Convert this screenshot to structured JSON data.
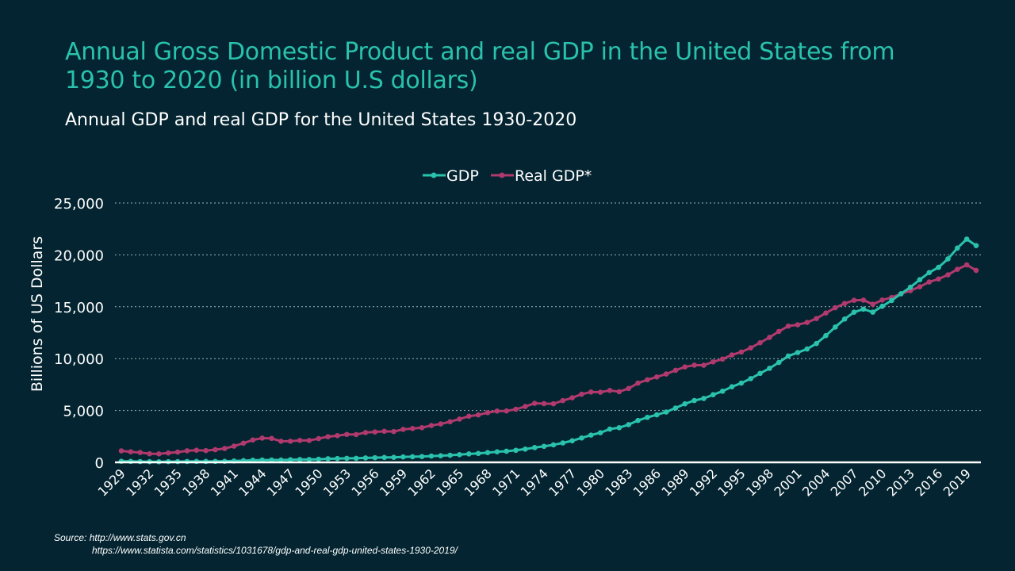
{
  "title": "Annual Gross Domestic Product and real GDP in the United States from 1930 to 2020 (in billion U.S dollars)",
  "subtitle": "Annual GDP and real GDP for the United States 1930-2020",
  "source": {
    "line1": "Source: http://www.stats.gov.cn",
    "line2": "https://www.statista.com/statistics/1031678/gdp-and-real-gdp-united-states-1930-2019/"
  },
  "colors": {
    "background": "#032430",
    "gdp": "#2ac2ad",
    "real_gdp": "#b03a6e",
    "title": "#2ac2ad"
  },
  "chart_data": {
    "type": "line",
    "title": "Annual GDP and real GDP for the United States 1930-2020",
    "xlabel": "",
    "ylabel": "Billions of US Dollars",
    "ylim": [
      0,
      25000
    ],
    "yticks": [
      0,
      5000,
      10000,
      15000,
      20000,
      25000
    ],
    "ytick_labels": [
      "0",
      "5,000",
      "10,000",
      "15,000",
      "20,000",
      "25,000"
    ],
    "xlim": [
      1929,
      2020
    ],
    "xtick_labels": [
      "1929",
      "1932",
      "1935",
      "1938",
      "1941",
      "1944",
      "1947",
      "1950",
      "1953",
      "1956",
      "1959",
      "1962",
      "1965",
      "1968",
      "1971",
      "1974",
      "1977",
      "1980",
      "1983",
      "1986",
      "1989",
      "1992",
      "1995",
      "1998",
      "2001",
      "2004",
      "2007",
      "2010",
      "2013",
      "2016",
      "2019"
    ],
    "grid": "horizontal-dotted",
    "legend_position": "top-center",
    "x_start": 1929,
    "series": [
      {
        "name": "GDP",
        "color": "#2ac2ad",
        "values": [
          104.6,
          92.2,
          77.4,
          59.5,
          57.2,
          66.8,
          74.3,
          84.9,
          93.0,
          87.4,
          93.4,
          102.9,
          129.3,
          166.0,
          203.1,
          224.4,
          228.0,
          227.5,
          249.6,
          274.5,
          272.5,
          299.8,
          346.9,
          367.3,
          389.2,
          390.5,
          425.5,
          449.4,
          474.0,
          481.2,
          521.7,
          542.4,
          562.2,
          603.9,
          637.5,
          684.5,
          742.3,
          813.4,
          860.0,
          940.7,
          1017.6,
          1073.3,
          1164.9,
          1279.1,
          1425.4,
          1545.2,
          1684.9,
          1873.4,
          2081.8,
          2351.6,
          2627.3,
          2857.3,
          3207.0,
          3343.8,
          3634.0,
          4037.6,
          4339.0,
          4579.6,
          4855.2,
          5236.4,
          5641.6,
          5963.1,
          6158.1,
          6520.3,
          6858.6,
          7287.2,
          7639.7,
          8073.1,
          8577.6,
          9062.8,
          9631.2,
          10251.0,
          10581.9,
          10929.1,
          11456.5,
          12217.2,
          13039.2,
          13815.6,
          14474.2,
          14769.9,
          14478.1,
          15049.0,
          15599.7,
          16254.0,
          16880.7,
          17608.1,
          18295.0,
          18804.9,
          19612.1,
          20656.5,
          21521.4,
          20893.7
        ]
      },
      {
        "name": "Real GDP*",
        "color": "#b03a6e",
        "values": [
          1109.4,
          1015.1,
          950.0,
          827.7,
          817.3,
          906.0,
          986.3,
          1113.6,
          1170.6,
          1132.4,
          1223.1,
          1331.0,
          1566.3,
          1848.4,
          2160.5,
          2335.0,
          2309.6,
          2032.7,
          2035.0,
          2116.5,
          2107.9,
          2290.6,
          2474.0,
          2574.5,
          2694.9,
          2681.4,
          2874.4,
          2932.7,
          2995.3,
          2969.4,
          3180.0,
          3262.1,
          3345.7,
          3550.7,
          3705.3,
          3918.8,
          4173.4,
          4448.7,
          4570.7,
          4795.8,
          4945.4,
          4954.5,
          5117.6,
          5386.7,
          5690.9,
          5660.0,
          5648.5,
          5952.8,
          6228.1,
          6572.8,
          6780.9,
          6763.5,
          6935.2,
          6810.1,
          7122.3,
          7637.7,
          7956.2,
          8231.7,
          8516.4,
          8872.3,
          9197.8,
          9371.5,
          9361.3,
          9691.1,
          9957.7,
          10358.9,
          10637.0,
          11038.3,
          11529.2,
          12045.8,
          12623.4,
          13138.0,
          13263.4,
          13488.4,
          13865.5,
          14399.7,
          14901.3,
          15315.9,
          15623.9,
          15643.0,
          15236.3,
          15649.0,
          15891.5,
          16254.0,
          16553.3,
          16932.1,
          17390.3,
          17680.3,
          18076.7,
          18609.1,
          19036.1,
          18509.1
        ]
      }
    ]
  }
}
